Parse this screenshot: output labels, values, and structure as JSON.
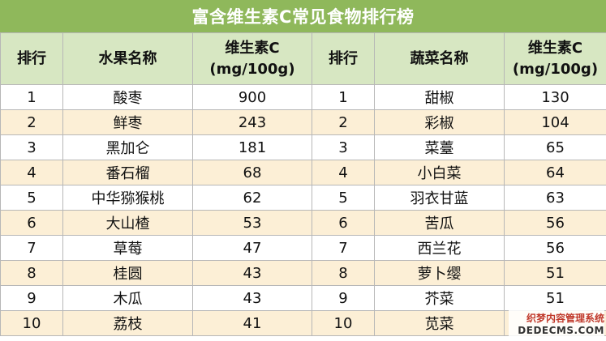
{
  "title": "富含维生素C常见食物排行榜",
  "headers": {
    "rank": "排行",
    "fruit_name": "水果名称",
    "vitc_line1": "维生素C",
    "vitc_line2": "(mg/100g)",
    "rank2": "排行",
    "veg_name": "蔬菜名称",
    "vitc2_line1": "维生素C",
    "vitc2_line2": "(mg/100g)"
  },
  "rows": [
    {
      "rank": "1",
      "fruit": "酸枣",
      "fruit_vc": "900",
      "rank2": "1",
      "veg": "甜椒",
      "veg_vc": "130"
    },
    {
      "rank": "2",
      "fruit": "鲜枣",
      "fruit_vc": "243",
      "rank2": "2",
      "veg": "彩椒",
      "veg_vc": "104"
    },
    {
      "rank": "3",
      "fruit": "黑加仑",
      "fruit_vc": "181",
      "rank2": "3",
      "veg": "菜薹",
      "veg_vc": "65"
    },
    {
      "rank": "4",
      "fruit": "番石榴",
      "fruit_vc": "68",
      "rank2": "4",
      "veg": "小白菜",
      "veg_vc": "64"
    },
    {
      "rank": "5",
      "fruit": "中华猕猴桃",
      "fruit_vc": "62",
      "rank2": "5",
      "veg": "羽衣甘蓝",
      "veg_vc": "63"
    },
    {
      "rank": "6",
      "fruit": "大山楂",
      "fruit_vc": "53",
      "rank2": "6",
      "veg": "苦瓜",
      "veg_vc": "56"
    },
    {
      "rank": "7",
      "fruit": "草莓",
      "fruit_vc": "47",
      "rank2": "7",
      "veg": "西兰花",
      "veg_vc": "56"
    },
    {
      "rank": "8",
      "fruit": "桂圆",
      "fruit_vc": "43",
      "rank2": "8",
      "veg": "萝卜缨",
      "veg_vc": "51"
    },
    {
      "rank": "9",
      "fruit": "木瓜",
      "fruit_vc": "43",
      "rank2": "9",
      "veg": "芥菜",
      "veg_vc": "51"
    },
    {
      "rank": "10",
      "fruit": "荔枝",
      "fruit_vc": "41",
      "rank2": "10",
      "veg": "苋菜",
      "veg_vc": ""
    }
  ],
  "watermark": {
    "line1": "织梦内容管理系统",
    "line2": "DEDECMS.COM"
  }
}
